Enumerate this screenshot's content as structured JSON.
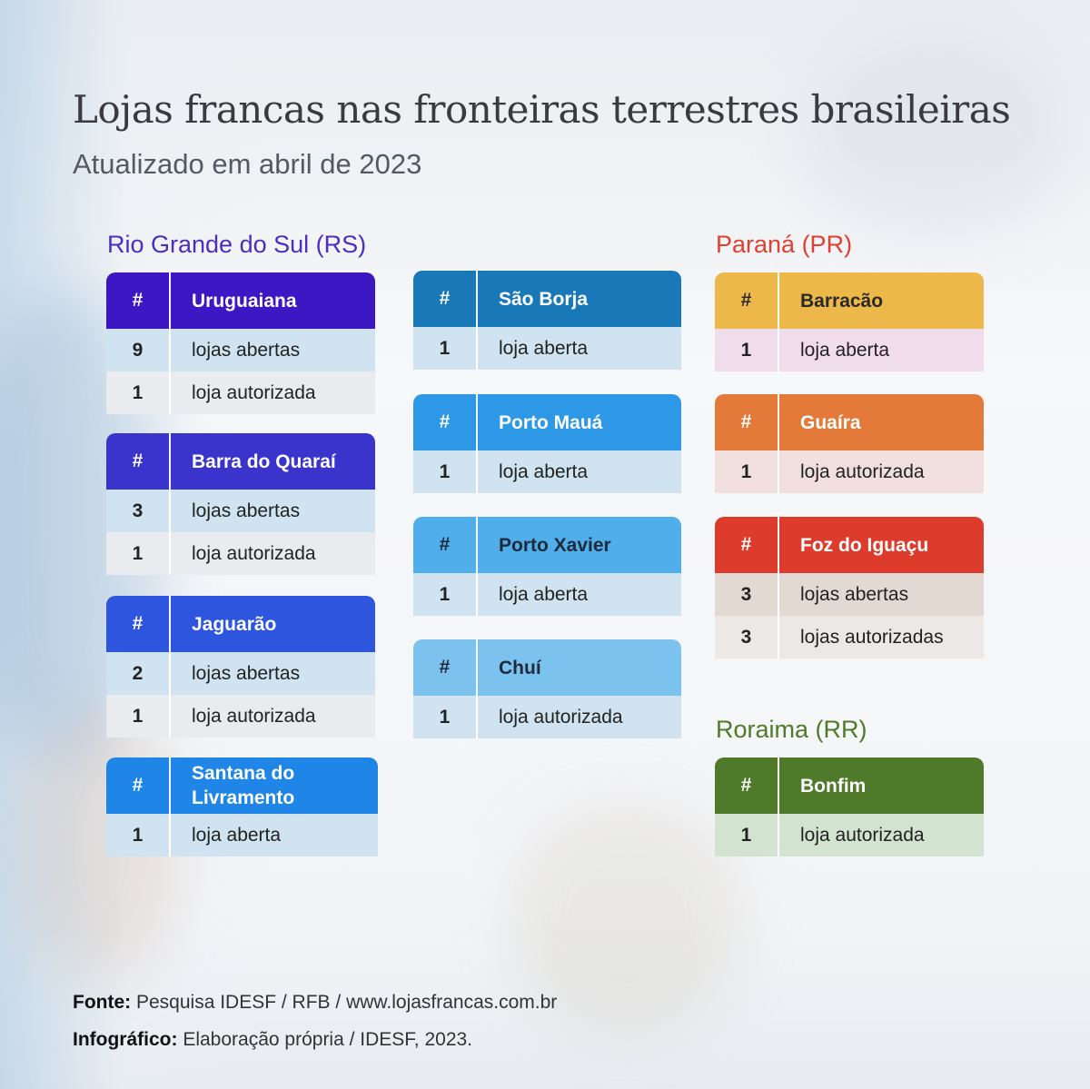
{
  "title": "Lojas francas nas fronteiras terrestres brasileiras",
  "subtitle": "Atualizado em abril de 2023",
  "regions": {
    "rs": "Rio Grande do Sul (RS)",
    "pr": "Paraná (PR)",
    "rr": "Roraima (RR)"
  },
  "colors": {
    "rs_title": "#4b2fc0",
    "pr_title": "#e0402f",
    "rr_title": "#4f7a2a"
  },
  "cards": {
    "uruguaiana": {
      "hash": "#",
      "name": "Uruguaiana",
      "rows": [
        {
          "num": "9",
          "text": "lojas abertas"
        },
        {
          "num": "1",
          "text": "loja autorizada"
        }
      ]
    },
    "barra": {
      "hash": "#",
      "name": "Barra do Quaraí",
      "rows": [
        {
          "num": "3",
          "text": "lojas abertas"
        },
        {
          "num": "1",
          "text": "loja autorizada"
        }
      ]
    },
    "jaguarao": {
      "hash": "#",
      "name": "Jaguarão",
      "rows": [
        {
          "num": "2",
          "text": "lojas abertas"
        },
        {
          "num": "1",
          "text": "loja autorizada"
        }
      ]
    },
    "santana": {
      "hash": "#",
      "name_line1": "Santana do",
      "name_line2": "Livramento",
      "rows": [
        {
          "num": "1",
          "text": "loja aberta"
        }
      ]
    },
    "saoborja": {
      "hash": "#",
      "name": "São Borja",
      "rows": [
        {
          "num": "1",
          "text": "loja aberta"
        }
      ]
    },
    "portomaua": {
      "hash": "#",
      "name": "Porto Mauá",
      "rows": [
        {
          "num": "1",
          "text": "loja aberta"
        }
      ]
    },
    "portoxavier": {
      "hash": "#",
      "name": "Porto Xavier",
      "rows": [
        {
          "num": "1",
          "text": "loja aberta"
        }
      ]
    },
    "chui": {
      "hash": "#",
      "name": "Chuí",
      "rows": [
        {
          "num": "1",
          "text": "loja autorizada"
        }
      ]
    },
    "barracao": {
      "hash": "#",
      "name": "Barracão",
      "rows": [
        {
          "num": "1",
          "text": "loja aberta"
        }
      ]
    },
    "guaira": {
      "hash": "#",
      "name": "Guaíra",
      "rows": [
        {
          "num": "1",
          "text": "loja autorizada"
        }
      ]
    },
    "foz": {
      "hash": "#",
      "name": "Foz do Iguaçu",
      "rows": [
        {
          "num": "3",
          "text": "lojas abertas"
        },
        {
          "num": "3",
          "text": "lojas autorizadas"
        }
      ]
    },
    "bonfim": {
      "hash": "#",
      "name": "Bonfim",
      "rows": [
        {
          "num": "1",
          "text": "loja autorizada"
        }
      ]
    }
  },
  "footer": {
    "source_label": "Fonte:",
    "source_text": " Pesquisa IDESF / RFB / www.lojasfrancas.com.br",
    "credit_label": "Infográfico:",
    "credit_text": " Elaboração própria / IDESF, 2023."
  }
}
